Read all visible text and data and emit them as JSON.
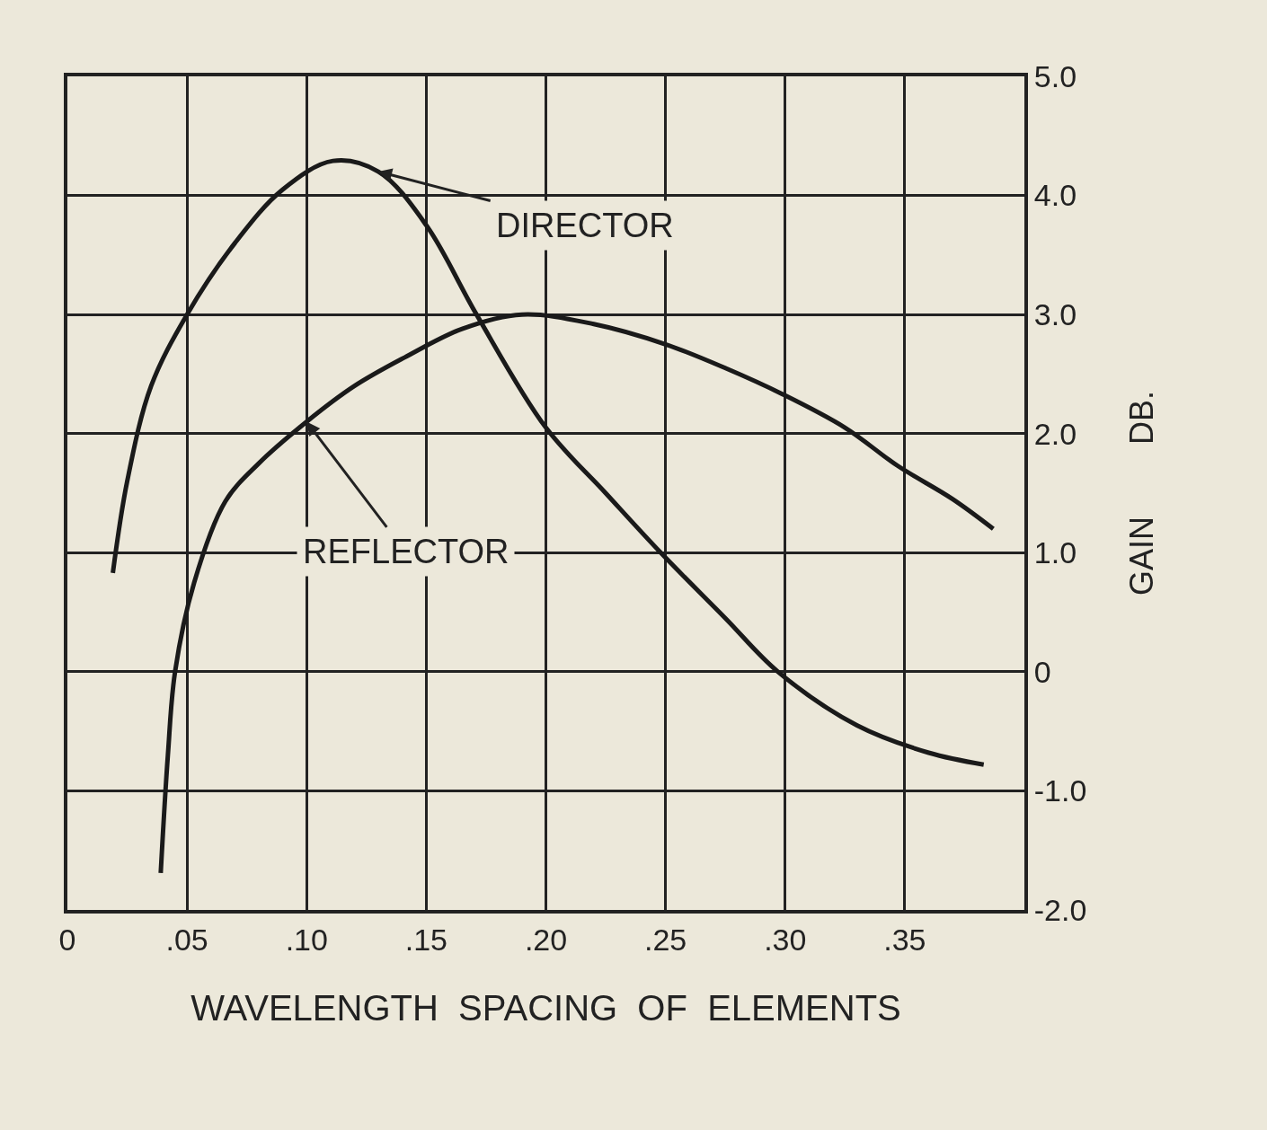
{
  "chart_data": {
    "type": "line",
    "xlabel": "WAVELENGTH  SPACING  OF  ELEMENTS",
    "ylabel": "GAIN        DB.",
    "xlim": [
      0,
      0.4
    ],
    "xticks": [
      0,
      {
        "value": 0.05,
        "label": ".05"
      },
      {
        "value": 0.1,
        "label": ".10"
      },
      {
        "value": 0.15,
        "label": ".15"
      },
      {
        "value": 0.2,
        "label": ".20"
      },
      {
        "value": 0.25,
        "label": ".25"
      },
      {
        "value": 0.3,
        "label": ".30"
      },
      {
        "value": 0.35,
        "label": ".35"
      },
      {
        "value": 0.4,
        "label": null
      }
    ],
    "ylim": [
      -2,
      5
    ],
    "yticks": [
      {
        "value": -2,
        "label": "-2.0"
      },
      {
        "value": -1,
        "label": "-1.0"
      },
      0,
      {
        "value": 1,
        "label": "1.0"
      },
      {
        "value": 2,
        "label": "2.0"
      },
      {
        "value": 3,
        "label": "3.0"
      },
      {
        "value": 4,
        "label": "4.0"
      },
      {
        "value": 5,
        "label": "5.0"
      }
    ],
    "grid": true,
    "marker": "none",
    "line_style": "solid",
    "series": [
      {
        "color": "#1a1a1a",
        "x": [
          0.019,
          0.025,
          0.035,
          0.05,
          0.07,
          0.09,
          0.111,
          0.13,
          0.15,
          0.171,
          0.2,
          0.225,
          0.248,
          0.275,
          0.297,
          0.33,
          0.36,
          0.383
        ],
        "values": [
          0.83,
          1.6,
          2.4,
          3.0,
          3.6,
          4.05,
          4.29,
          4.2,
          3.75,
          3.0,
          2.05,
          1.5,
          1.0,
          0.45,
          0.0,
          -0.45,
          -0.68,
          -0.78
        ]
      },
      {
        "color": "#1a1a1a",
        "x": [
          0.039,
          0.042,
          0.045,
          0.053,
          0.066,
          0.08,
          0.1,
          0.12,
          0.141,
          0.165,
          0.19,
          0.22,
          0.25,
          0.275,
          0.299,
          0.325,
          0.347,
          0.37,
          0.387
        ],
        "values": [
          -1.69,
          -0.7,
          0.0,
          0.75,
          1.43,
          1.75,
          2.1,
          2.4,
          2.64,
          2.88,
          3.0,
          2.92,
          2.75,
          2.55,
          2.33,
          2.05,
          1.73,
          1.45,
          1.2
        ]
      }
    ],
    "annotations": [
      {
        "text": "DIRECTOR",
        "x": 0.13,
        "y": 4.2
      },
      {
        "text": "REFLECTOR",
        "x": 0.1,
        "y": 2.1
      }
    ]
  }
}
